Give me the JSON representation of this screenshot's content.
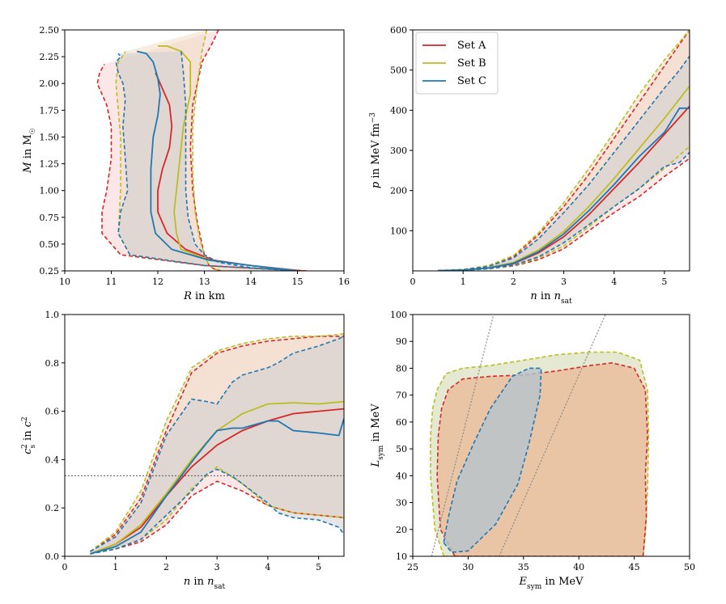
{
  "colors": {
    "set_a": "#d62728",
    "set_b": "#bcbd22",
    "set_c": "#1f77b4",
    "fill_a": "#f8d3d3",
    "fill_b": "#f1dcc4",
    "fill_c": "#cfcfcf",
    "ref": "#888888"
  },
  "chart_data": [
    {
      "id": "mr",
      "type": "line",
      "title": "",
      "xlabel": "R in km",
      "ylabel": "M in M☉",
      "xlim": [
        10,
        16
      ],
      "ylim": [
        0.25,
        2.5
      ],
      "xticks": [
        "10",
        "11",
        "12",
        "13",
        "14",
        "15",
        "16"
      ],
      "yticks": [
        "0.25",
        "0.50",
        "0.75",
        "1.00",
        "1.25",
        "1.50",
        "1.75",
        "2.00",
        "2.25",
        "2.50"
      ],
      "series": [
        {
          "name": "Set A",
          "median_x": [
            15.1,
            14.0,
            13.2,
            12.6,
            12.2,
            12.0,
            12.0,
            12.1,
            12.25,
            12.3,
            12.25,
            12.05,
            11.95
          ],
          "median_y": [
            0.25,
            0.3,
            0.35,
            0.45,
            0.6,
            0.8,
            1.0,
            1.2,
            1.4,
            1.6,
            1.8,
            2.0,
            2.1
          ],
          "band_lo_x": [
            15.2,
            13.0,
            11.2,
            10.8,
            10.8,
            10.9,
            11.0,
            11.0,
            10.9,
            10.7,
            10.75,
            10.85
          ],
          "band_lo_y": [
            0.25,
            0.3,
            0.4,
            0.6,
            0.8,
            1.0,
            1.3,
            1.6,
            1.8,
            2.0,
            2.1,
            2.18
          ],
          "band_hi_x": [
            13.3,
            13.2,
            12.95,
            12.75,
            12.7,
            12.75,
            12.85,
            12.95,
            13.0,
            13.05,
            13.1,
            13.2,
            13.35
          ],
          "band_hi_y": [
            2.5,
            2.4,
            2.2,
            1.8,
            1.4,
            1.0,
            0.7,
            0.5,
            0.4,
            0.35,
            0.3,
            0.27,
            0.25
          ]
        },
        {
          "name": "Set B",
          "median_x": [
            15.0,
            14.0,
            13.1,
            12.5,
            12.4,
            12.35,
            12.45,
            12.55,
            12.7,
            12.7,
            12.5,
            12.2,
            12.0
          ],
          "median_y": [
            0.25,
            0.3,
            0.35,
            0.45,
            0.6,
            0.8,
            1.2,
            1.6,
            1.9,
            2.2,
            2.3,
            2.35,
            2.35
          ],
          "band_lo_x": [
            15.0,
            13.0,
            11.4,
            11.15,
            11.2,
            11.2,
            11.1,
            11.15,
            11.25,
            11.3
          ],
          "band_lo_y": [
            0.25,
            0.3,
            0.4,
            0.6,
            1.0,
            1.5,
            2.0,
            2.2,
            2.26,
            2.3
          ],
          "band_hi_x": [
            13.05,
            12.95,
            12.85,
            12.75,
            12.75,
            12.8,
            12.9,
            13.0,
            13.1,
            13.3
          ],
          "band_hi_y": [
            2.5,
            2.3,
            2.0,
            1.6,
            1.2,
            0.8,
            0.55,
            0.4,
            0.3,
            0.25
          ]
        },
        {
          "name": "Set C",
          "median_x": [
            15.0,
            14.0,
            13.1,
            12.3,
            11.95,
            11.85,
            11.85,
            11.9,
            12.0,
            12.05,
            12.0,
            11.9,
            11.75,
            11.55
          ],
          "median_y": [
            0.25,
            0.3,
            0.35,
            0.45,
            0.6,
            0.8,
            1.2,
            1.5,
            1.7,
            1.9,
            2.05,
            2.2,
            2.28,
            2.3
          ],
          "band_lo_x": [
            15.0,
            13.0,
            11.4,
            11.15,
            11.2,
            11.35,
            11.3,
            11.25,
            11.3,
            11.25,
            11.15,
            11.1,
            11.2,
            11.15
          ],
          "band_lo_y": [
            0.25,
            0.3,
            0.4,
            0.6,
            0.8,
            1.0,
            1.3,
            1.6,
            1.85,
            2.0,
            2.1,
            2.2,
            2.25,
            2.28
          ],
          "band_hi_x": [
            12.5,
            12.55,
            12.6,
            12.6,
            12.6,
            12.65,
            12.8,
            13.0,
            13.3,
            14.0,
            15.0
          ],
          "band_hi_y": [
            2.3,
            2.1,
            1.8,
            1.4,
            1.0,
            0.75,
            0.5,
            0.4,
            0.33,
            0.28,
            0.25
          ]
        }
      ]
    },
    {
      "id": "pn",
      "type": "line",
      "title": "",
      "xlabel": "n in n_sat",
      "ylabel": "p in MeV fm⁻³",
      "xlim": [
        0,
        5.5
      ],
      "ylim": [
        0,
        600
      ],
      "xticks": [
        "0",
        "1",
        "2",
        "3",
        "4",
        "5"
      ],
      "yticks": [
        "100",
        "200",
        "300",
        "400",
        "500",
        "600"
      ],
      "legend_position": "top-left",
      "series": [
        {
          "name": "Set A",
          "x": [
            0.5,
            1.0,
            1.5,
            2.0,
            2.5,
            3.0,
            3.5,
            4.0,
            4.5,
            5.0,
            5.5
          ],
          "median": [
            0.5,
            2,
            7,
            18,
            45,
            85,
            140,
            205,
            270,
            340,
            410
          ],
          "lo": [
            0.3,
            1.5,
            5,
            12,
            28,
            55,
            100,
            145,
            185,
            235,
            280
          ],
          "hi": [
            0.8,
            3,
            12,
            35,
            90,
            160,
            240,
            330,
            420,
            510,
            600
          ]
        },
        {
          "name": "Set B",
          "x": [
            0.5,
            1.0,
            1.5,
            2.0,
            2.5,
            3.0,
            3.5,
            4.0,
            4.5,
            5.0,
            5.5
          ],
          "median": [
            0.5,
            2.5,
            8,
            21,
            52,
            98,
            160,
            230,
            305,
            380,
            460
          ],
          "lo": [
            0.3,
            1.5,
            5,
            13,
            32,
            62,
            110,
            160,
            205,
            255,
            310
          ],
          "hi": [
            0.8,
            3.5,
            13,
            38,
            95,
            170,
            255,
            345,
            440,
            525,
            600
          ]
        },
        {
          "name": "Set C",
          "x": [
            0.5,
            1.0,
            1.5,
            2.0,
            2.5,
            3.0,
            3.5,
            4.0,
            4.5,
            5.0,
            5.3,
            5.5
          ],
          "median": [
            0.5,
            2,
            7,
            19,
            48,
            92,
            150,
            215,
            285,
            345,
            405,
            405
          ],
          "lo": [
            0.3,
            1.5,
            5.5,
            14,
            35,
            70,
            115,
            160,
            205,
            260,
            270,
            295
          ],
          "hi": [
            0.8,
            3,
            11,
            32,
            80,
            145,
            215,
            295,
            375,
            455,
            500,
            535
          ]
        }
      ]
    },
    {
      "id": "cs",
      "type": "line",
      "title": "",
      "xlabel": "n in n_sat",
      "ylabel": "c_s² in c²",
      "xlim": [
        0,
        5.5
      ],
      "ylim": [
        0,
        1.0
      ],
      "xticks": [
        "0",
        "1",
        "2",
        "3",
        "4",
        "5"
      ],
      "yticks": [
        "0.0",
        "0.2",
        "0.4",
        "0.6",
        "0.8",
        "1.0"
      ],
      "reference_line": 0.3333,
      "series": [
        {
          "name": "Set A",
          "x": [
            0.5,
            1.0,
            1.5,
            2.0,
            2.5,
            3.0,
            3.5,
            4.0,
            4.5,
            5.0,
            5.5
          ],
          "median": [
            0.01,
            0.05,
            0.12,
            0.25,
            0.37,
            0.46,
            0.52,
            0.56,
            0.59,
            0.6,
            0.61
          ],
          "lo": [
            0.01,
            0.03,
            0.06,
            0.13,
            0.25,
            0.31,
            0.27,
            0.21,
            0.18,
            0.17,
            0.16
          ],
          "hi": [
            0.02,
            0.09,
            0.24,
            0.52,
            0.76,
            0.84,
            0.87,
            0.89,
            0.9,
            0.91,
            0.91
          ]
        },
        {
          "name": "Set B",
          "x": [
            0.5,
            1.0,
            1.5,
            2.0,
            2.5,
            3.0,
            3.5,
            4.0,
            4.5,
            5.0,
            5.5
          ],
          "median": [
            0.01,
            0.05,
            0.13,
            0.26,
            0.4,
            0.52,
            0.59,
            0.63,
            0.635,
            0.63,
            0.64
          ],
          "lo": [
            0.01,
            0.03,
            0.07,
            0.15,
            0.28,
            0.37,
            0.3,
            0.21,
            0.18,
            0.17,
            0.16
          ],
          "hi": [
            0.02,
            0.1,
            0.27,
            0.56,
            0.78,
            0.85,
            0.88,
            0.9,
            0.91,
            0.91,
            0.92
          ]
        },
        {
          "name": "Set C",
          "x": [
            0.5,
            1.0,
            1.5,
            2.0,
            2.5,
            2.8,
            3.0,
            3.3,
            3.5,
            4.0,
            4.2,
            4.5,
            5.0,
            5.4,
            5.5
          ],
          "median": [
            0.01,
            0.04,
            0.1,
            0.25,
            0.39,
            0.47,
            0.52,
            0.53,
            0.53,
            0.56,
            0.56,
            0.52,
            0.51,
            0.5,
            0.57
          ],
          "lo": [
            0.01,
            0.03,
            0.07,
            0.17,
            0.27,
            0.34,
            0.36,
            0.33,
            0.3,
            0.22,
            0.18,
            0.16,
            0.15,
            0.12,
            0.09
          ],
          "hi": [
            0.02,
            0.08,
            0.22,
            0.5,
            0.65,
            0.64,
            0.63,
            0.72,
            0.75,
            0.78,
            0.8,
            0.84,
            0.87,
            0.9,
            0.91
          ]
        }
      ]
    },
    {
      "id": "el",
      "type": "area",
      "title": "",
      "xlabel": "E_sym in MeV",
      "ylabel": "L_sym in MeV",
      "xlim": [
        25,
        50
      ],
      "ylim": [
        10,
        100
      ],
      "xticks": [
        "25",
        "30",
        "35",
        "40",
        "45",
        "50"
      ],
      "yticks": [
        "10",
        "20",
        "30",
        "40",
        "50",
        "60",
        "70",
        "80",
        "90",
        "100"
      ],
      "reference_lines": [
        {
          "x": [
            26.7,
            32.3
          ],
          "y": [
            10,
            100
          ]
        },
        {
          "x": [
            32.8,
            42.4
          ],
          "y": [
            10,
            100
          ]
        }
      ],
      "series": [
        {
          "name": "Set A",
          "contour_x": [
            28.8,
            27.5,
            27.2,
            27.3,
            27.6,
            28.2,
            29.5,
            32.0,
            35.0,
            38.0,
            41.0,
            43.0,
            45.0,
            46.0,
            46.2,
            46.0,
            46.1,
            45.9,
            45.8
          ],
          "contour_y": [
            10,
            20,
            40,
            55,
            65,
            72,
            76,
            77,
            77.5,
            79,
            81,
            82,
            80,
            72,
            55,
            40,
            25,
            15,
            10
          ]
        },
        {
          "name": "Set B",
          "contour_x": [
            27.8,
            27.0,
            26.6,
            26.6,
            26.8,
            27.2,
            28.0,
            29.5,
            32.0,
            35.0,
            38.0,
            41.0,
            43.5,
            45.5,
            46.2,
            46.3,
            46.2,
            46.0,
            45.8
          ],
          "contour_y": [
            10,
            20,
            40,
            55,
            65,
            72,
            78,
            80,
            81,
            83,
            85,
            86,
            86,
            83,
            72,
            55,
            35,
            18,
            10
          ]
        },
        {
          "name": "Set C",
          "contour_x": [
            27.8,
            28.5,
            30.0,
            32.5,
            34.5,
            35.5,
            36.5,
            36.6,
            35.5,
            34.0,
            32.0,
            30.5,
            29.0,
            28.3,
            27.9,
            27.8
          ],
          "contour_y": [
            15,
            11.5,
            12,
            22,
            37,
            52,
            70,
            80,
            80,
            77,
            65,
            52,
            38,
            26,
            18,
            15
          ]
        }
      ]
    }
  ],
  "legend": [
    {
      "label": "Set A"
    },
    {
      "label": "Set B"
    },
    {
      "label": "Set C"
    }
  ]
}
